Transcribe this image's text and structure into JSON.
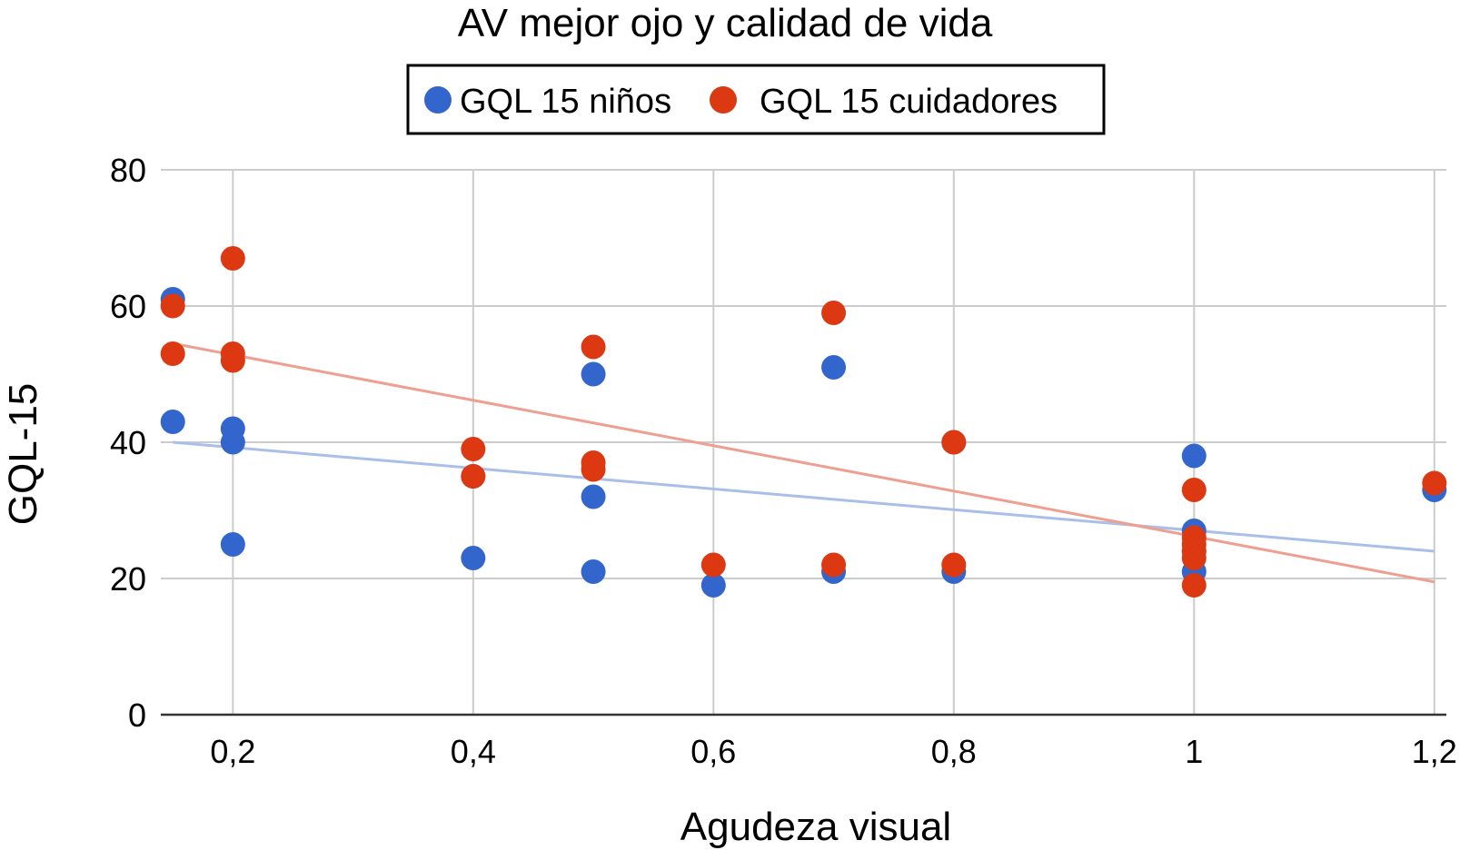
{
  "chart_data": {
    "type": "scatter",
    "title": "AV mejor ojo y calidad de vida",
    "xlabel": "Agudeza visual",
    "ylabel": "GQL-15",
    "xlim": [
      0.14,
      1.21
    ],
    "ylim": [
      0,
      80
    ],
    "x_ticks": [
      {
        "value": 0.2,
        "label": "0,2"
      },
      {
        "value": 0.4,
        "label": "0,4"
      },
      {
        "value": 0.6,
        "label": "0,6"
      },
      {
        "value": 0.8,
        "label": "0,8"
      },
      {
        "value": 1.0,
        "label": "1"
      },
      {
        "value": 1.2,
        "label": "1,2"
      }
    ],
    "y_ticks": [
      {
        "value": 0,
        "label": "0"
      },
      {
        "value": 20,
        "label": "20"
      },
      {
        "value": 40,
        "label": "40"
      },
      {
        "value": 60,
        "label": "60"
      },
      {
        "value": 80,
        "label": "80"
      }
    ],
    "grid": true,
    "legend_position": "top",
    "series": [
      {
        "name": "GQL 15 niños",
        "color": "#3366cc",
        "trendline_color": "#a9bfe9",
        "trendline": {
          "x": [
            0.15,
            1.2
          ],
          "y": [
            40,
            24
          ]
        },
        "points": [
          {
            "x": 0.15,
            "y": 61
          },
          {
            "x": 0.15,
            "y": 43
          },
          {
            "x": 0.2,
            "y": 42
          },
          {
            "x": 0.2,
            "y": 40
          },
          {
            "x": 0.2,
            "y": 25
          },
          {
            "x": 0.4,
            "y": 35
          },
          {
            "x": 0.4,
            "y": 23
          },
          {
            "x": 0.5,
            "y": 50
          },
          {
            "x": 0.5,
            "y": 32
          },
          {
            "x": 0.5,
            "y": 21
          },
          {
            "x": 0.6,
            "y": 19
          },
          {
            "x": 0.7,
            "y": 51
          },
          {
            "x": 0.7,
            "y": 21
          },
          {
            "x": 0.8,
            "y": 40
          },
          {
            "x": 0.8,
            "y": 21
          },
          {
            "x": 1.0,
            "y": 38
          },
          {
            "x": 1.0,
            "y": 27
          },
          {
            "x": 1.0,
            "y": 24
          },
          {
            "x": 1.0,
            "y": 21
          },
          {
            "x": 1.2,
            "y": 33
          }
        ]
      },
      {
        "name": "GQL 15 cuidadores",
        "color": "#dc3912",
        "trendline_color": "#ee9f8f",
        "trendline": {
          "x": [
            0.15,
            1.2
          ],
          "y": [
            54.5,
            19.5
          ]
        },
        "points": [
          {
            "x": 0.15,
            "y": 60
          },
          {
            "x": 0.15,
            "y": 53
          },
          {
            "x": 0.2,
            "y": 67
          },
          {
            "x": 0.2,
            "y": 53
          },
          {
            "x": 0.2,
            "y": 52
          },
          {
            "x": 0.4,
            "y": 39
          },
          {
            "x": 0.4,
            "y": 35
          },
          {
            "x": 0.5,
            "y": 54
          },
          {
            "x": 0.5,
            "y": 37
          },
          {
            "x": 0.5,
            "y": 36
          },
          {
            "x": 0.6,
            "y": 22
          },
          {
            "x": 0.7,
            "y": 59
          },
          {
            "x": 0.7,
            "y": 22
          },
          {
            "x": 0.8,
            "y": 40
          },
          {
            "x": 0.8,
            "y": 22
          },
          {
            "x": 1.0,
            "y": 33
          },
          {
            "x": 1.0,
            "y": 26
          },
          {
            "x": 1.0,
            "y": 25
          },
          {
            "x": 1.0,
            "y": 24
          },
          {
            "x": 1.0,
            "y": 23
          },
          {
            "x": 1.0,
            "y": 19
          },
          {
            "x": 1.2,
            "y": 34
          }
        ]
      }
    ]
  }
}
